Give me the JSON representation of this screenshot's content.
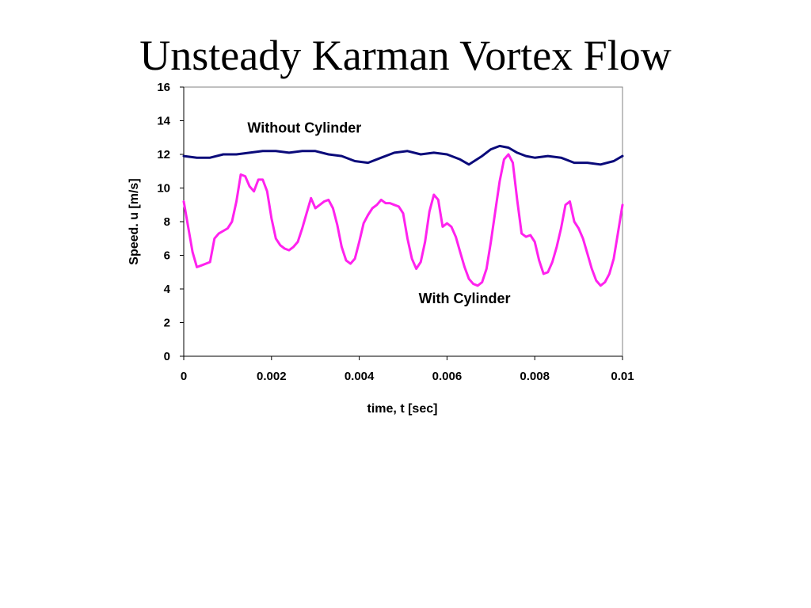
{
  "slide": {
    "title": "Unsteady Karman Vortex Flow"
  },
  "chart_data": {
    "type": "line",
    "title": "",
    "xlabel": "time, t [sec]",
    "ylabel": "Speed. u [m/s]",
    "xlim": [
      0,
      0.01
    ],
    "ylim": [
      0,
      16
    ],
    "x_ticks": [
      0,
      0.002,
      0.004,
      0.006,
      0.008,
      0.01
    ],
    "x_tick_labels": [
      "0",
      "0.002",
      "0.004",
      "0.006",
      "0.008",
      "0.01"
    ],
    "y_ticks": [
      0,
      2,
      4,
      6,
      8,
      10,
      12,
      14,
      16
    ],
    "y_tick_labels": [
      "0",
      "2",
      "4",
      "6",
      "8",
      "10",
      "12",
      "14",
      "16"
    ],
    "grid": false,
    "legend": "none",
    "annotations": [
      {
        "text": "Without Cylinder",
        "x": 0.00275,
        "y": 13.3
      },
      {
        "text": "With Cylinder",
        "x": 0.0064,
        "y": 3.15
      }
    ],
    "series": [
      {
        "label": "Without Cylinder",
        "color": "#0a0a7a",
        "x": [
          0,
          0.0003,
          0.0006,
          0.0009,
          0.0012,
          0.0015,
          0.0018,
          0.0021,
          0.0024,
          0.0027,
          0.003,
          0.0033,
          0.0036,
          0.0039,
          0.0042,
          0.0045,
          0.0048,
          0.0051,
          0.0054,
          0.0057,
          0.006,
          0.0063,
          0.0065,
          0.0068,
          0.007,
          0.0072,
          0.0074,
          0.0076,
          0.0078,
          0.008,
          0.0083,
          0.0086,
          0.0089,
          0.0092,
          0.0095,
          0.0098,
          0.01
        ],
        "y": [
          11.9,
          11.8,
          11.8,
          12.0,
          12.0,
          12.1,
          12.2,
          12.2,
          12.1,
          12.2,
          12.2,
          12.0,
          11.9,
          11.6,
          11.5,
          11.8,
          12.1,
          12.2,
          12.0,
          12.1,
          12.0,
          11.7,
          11.4,
          11.9,
          12.3,
          12.5,
          12.4,
          12.1,
          11.9,
          11.8,
          11.9,
          11.8,
          11.5,
          11.5,
          11.4,
          11.6,
          11.9
        ]
      },
      {
        "label": "With Cylinder",
        "color": "#ff22ee",
        "x": [
          0,
          0.0002,
          0.0003,
          0.0004,
          0.0006,
          0.0007,
          0.0008,
          0.001,
          0.0011,
          0.0012,
          0.0013,
          0.0014,
          0.0015,
          0.0016,
          0.0017,
          0.0018,
          0.0019,
          0.002,
          0.0021,
          0.0022,
          0.0023,
          0.0024,
          0.0025,
          0.0026,
          0.0027,
          0.0028,
          0.0029,
          0.003,
          0.0031,
          0.0032,
          0.0033,
          0.0034,
          0.0035,
          0.0036,
          0.0037,
          0.0038,
          0.0039,
          0.004,
          0.0041,
          0.0042,
          0.0043,
          0.0044,
          0.0045,
          0.0046,
          0.0047,
          0.0048,
          0.0049,
          0.005,
          0.0051,
          0.0052,
          0.0053,
          0.0054,
          0.0055,
          0.0056,
          0.0057,
          0.0058,
          0.0059,
          0.006,
          0.0061,
          0.0062,
          0.0063,
          0.0064,
          0.0065,
          0.0066,
          0.0067,
          0.0068,
          0.0069,
          0.007,
          0.0071,
          0.0072,
          0.0073,
          0.0074,
          0.0075,
          0.0076,
          0.0077,
          0.0078,
          0.0079,
          0.008,
          0.0081,
          0.0082,
          0.0083,
          0.0084,
          0.0085,
          0.0086,
          0.0087,
          0.0088,
          0.0089,
          0.009,
          0.0091,
          0.0092,
          0.0093,
          0.0094,
          0.0095,
          0.0096,
          0.0097,
          0.0098,
          0.0099,
          0.01
        ],
        "y": [
          9.2,
          6.2,
          5.3,
          5.4,
          5.6,
          7.0,
          7.3,
          7.6,
          8.0,
          9.2,
          10.8,
          10.7,
          10.1,
          9.8,
          10.5,
          10.5,
          9.8,
          8.2,
          7.0,
          6.6,
          6.4,
          6.3,
          6.5,
          6.8,
          7.6,
          8.5,
          9.4,
          8.8,
          9.0,
          9.2,
          9.3,
          8.8,
          7.8,
          6.5,
          5.7,
          5.5,
          5.8,
          6.8,
          7.9,
          8.4,
          8.8,
          9.0,
          9.3,
          9.1,
          9.1,
          9.0,
          8.9,
          8.5,
          7.0,
          5.8,
          5.2,
          5.6,
          6.8,
          8.6,
          9.6,
          9.3,
          7.7,
          7.9,
          7.7,
          7.1,
          6.2,
          5.3,
          4.6,
          4.3,
          4.2,
          4.4,
          5.2,
          6.8,
          8.6,
          10.4,
          11.7,
          12.0,
          11.5,
          9.3,
          7.3,
          7.1,
          7.2,
          6.8,
          5.7,
          4.9,
          5.0,
          5.6,
          6.5,
          7.6,
          9.0,
          9.2,
          8.0,
          7.6,
          7.0,
          6.1,
          5.2,
          4.5,
          4.2,
          4.4,
          4.9,
          5.8,
          7.4,
          9.0
        ]
      }
    ]
  }
}
